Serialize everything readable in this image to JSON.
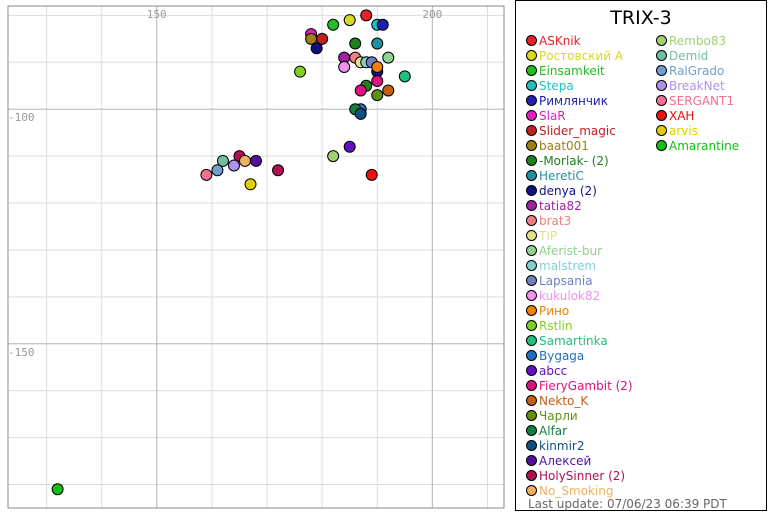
{
  "chart_data": {
    "type": "scatter",
    "title": "TRIX-3",
    "x_ticks": [
      150,
      200
    ],
    "y_ticks": [
      -100,
      -150
    ],
    "xlim": [
      123,
      213
    ],
    "ylim": [
      -185,
      -78
    ],
    "grid": true,
    "legend_placement": "right",
    "series": [
      {
        "name": "ASKnik",
        "color": "#e8202a",
        "points": [
          [
            188,
            -80
          ]
        ]
      },
      {
        "name": "Ростовский А",
        "color": "#d8d820",
        "points": [
          [
            185,
            -81
          ]
        ]
      },
      {
        "name": "Einsamkeit",
        "color": "#20c020",
        "points": [
          [
            182,
            -82
          ]
        ]
      },
      {
        "name": "Stepa",
        "color": "#20c0c0",
        "points": [
          [
            190,
            -82
          ]
        ]
      },
      {
        "name": "Римлянчик",
        "color": "#2020b0",
        "points": [
          [
            191,
            -82
          ]
        ]
      },
      {
        "name": "SlaR",
        "color": "#e020c0",
        "points": [
          [
            178,
            -84
          ]
        ]
      },
      {
        "name": "Slider_magic",
        "color": "#c02020",
        "points": [
          [
            180,
            -85
          ]
        ]
      },
      {
        "name": "baat001",
        "color": "#a08010",
        "points": [
          [
            178,
            -85
          ]
        ]
      },
      {
        "name": "-Morlak- (2)",
        "color": "#208020",
        "points": [
          [
            186,
            -86
          ],
          [
            188,
            -95
          ]
        ]
      },
      {
        "name": "HeretiC",
        "color": "#2090a0",
        "points": [
          [
            190,
            -86
          ]
        ]
      },
      {
        "name": "denya (2)",
        "color": "#101080",
        "points": [
          [
            179,
            -87
          ],
          [
            190,
            -92
          ]
        ]
      },
      {
        "name": "tatia82",
        "color": "#a020a0",
        "points": [
          [
            184,
            -89
          ]
        ]
      },
      {
        "name": "brat3",
        "color": "#f08080",
        "points": [
          [
            186,
            -89
          ]
        ]
      },
      {
        "name": "TIP",
        "color": "#e0e090",
        "points": [
          [
            187,
            -90
          ]
        ]
      },
      {
        "name": "Aferist-bur",
        "color": "#90d090",
        "points": [
          [
            192,
            -89
          ]
        ]
      },
      {
        "name": "malstrem",
        "color": "#80d0d0",
        "points": [
          [
            188,
            -90
          ]
        ]
      },
      {
        "name": "Lapsania",
        "color": "#7080c0",
        "points": [
          [
            189,
            -90
          ]
        ]
      },
      {
        "name": "kukulok82",
        "color": "#f090f0",
        "points": [
          [
            184,
            -91
          ]
        ]
      },
      {
        "name": "Рино",
        "color": "#f08000",
        "points": [
          [
            190,
            -91
          ]
        ]
      },
      {
        "name": "Rstlin",
        "color": "#80d020",
        "points": [
          [
            176,
            -92
          ]
        ]
      },
      {
        "name": "Samartinka",
        "color": "#20c080",
        "points": [
          [
            195,
            -93
          ]
        ]
      },
      {
        "name": "Bygaga",
        "color": "#2070c0",
        "points": [
          [
            187,
            -100
          ]
        ]
      },
      {
        "name": "abcc",
        "color": "#6010c0",
        "points": [
          [
            185,
            -108
          ]
        ]
      },
      {
        "name": "FieryGambit (2)",
        "color": "#e01080",
        "points": [
          [
            187,
            -96
          ],
          [
            190,
            -94
          ]
        ]
      },
      {
        "name": "Nekto_K",
        "color": "#c06010",
        "points": [
          [
            192,
            -96
          ]
        ]
      },
      {
        "name": "Чарли",
        "color": "#609010",
        "points": [
          [
            190,
            -97
          ]
        ]
      },
      {
        "name": "Alfar",
        "color": "#108040",
        "points": [
          [
            186,
            -100
          ]
        ]
      },
      {
        "name": "kinmir2",
        "color": "#105080",
        "points": [
          [
            187,
            -101
          ]
        ]
      },
      {
        "name": "Алексей",
        "color": "#5010a0",
        "points": [
          [
            168,
            -111
          ]
        ]
      },
      {
        "name": "HolySinner (2)",
        "color": "#b01050",
        "points": [
          [
            172,
            -113
          ],
          [
            165,
            -110
          ]
        ]
      },
      {
        "name": "No_Smoking",
        "color": "#f0b060",
        "points": [
          [
            166,
            -111
          ]
        ]
      },
      {
        "name": "Rembo83",
        "color": "#a0d070",
        "points": [
          [
            182,
            -110
          ]
        ]
      },
      {
        "name": "Demid",
        "color": "#70c0a0",
        "points": [
          [
            162,
            -111
          ]
        ]
      },
      {
        "name": "RalGrado",
        "color": "#70a0d0",
        "points": [
          [
            161,
            -113
          ]
        ]
      },
      {
        "name": "BreakNet",
        "color": "#b090f0",
        "points": [
          [
            164,
            -112
          ]
        ]
      },
      {
        "name": "SERGANT1",
        "color": "#f07090",
        "points": [
          [
            159,
            -114
          ]
        ]
      },
      {
        "name": "ХАН",
        "color": "#ee1010",
        "points": [
          [
            189,
            -114
          ]
        ]
      },
      {
        "name": "arvis",
        "color": "#e0d000",
        "points": [
          [
            167,
            -116
          ]
        ]
      },
      {
        "name": "Amarantine",
        "color": "#10c010",
        "points": [
          [
            132,
            -181
          ]
        ]
      }
    ]
  },
  "legend": {
    "last_update": "Last update: 07/06/23 06:39 PDT"
  }
}
